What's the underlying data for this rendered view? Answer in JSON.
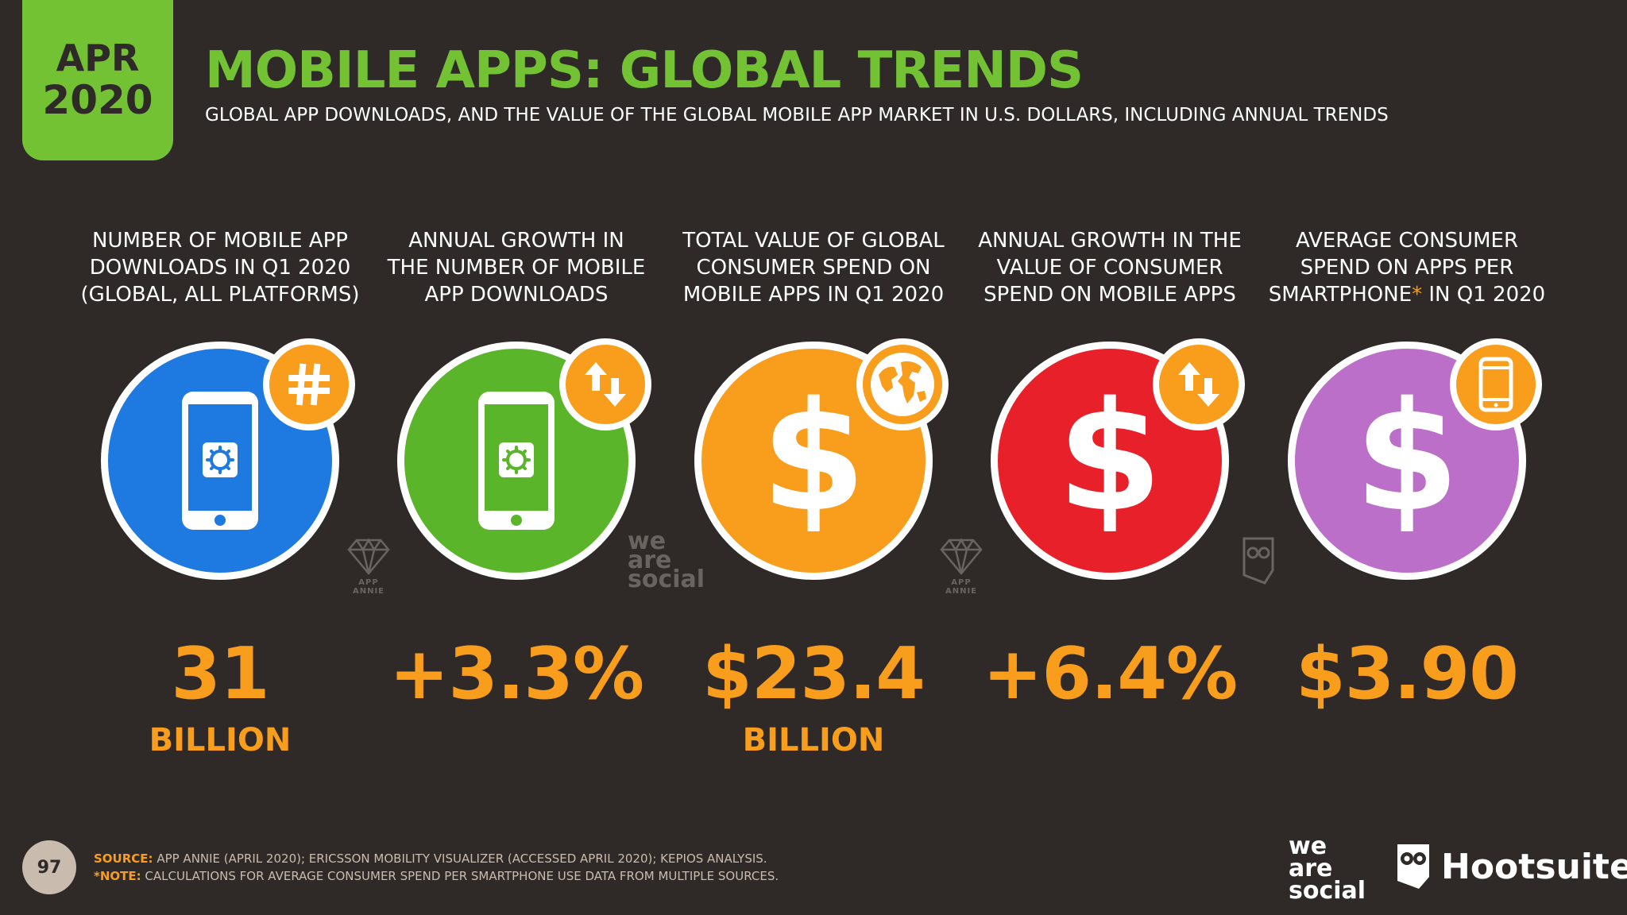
{
  "header": {
    "month": "APR",
    "year": "2020",
    "title": "MOBILE APPS: GLOBAL TRENDS",
    "subtitle": "GLOBAL APP DOWNLOADS, AND THE VALUE OF THE GLOBAL MOBILE APP MARKET IN U.S. DOLLARS, INCLUDING ANNUAL TRENDS"
  },
  "colors": {
    "background": "#2f2a27",
    "accent_green": "#72c234",
    "accent_orange": "#f99d1c",
    "blue": "#1e7ae0",
    "green": "#5ab52a",
    "orange": "#f99d1c",
    "red": "#e8202a",
    "purple": "#bc6fc8"
  },
  "stats": [
    {
      "label_lines": [
        "NUMBER OF MOBILE APP",
        "DOWNLOADS IN Q1 2020",
        "(GLOBAL, ALL PLATFORMS)"
      ],
      "value": "31",
      "unit": "BILLION",
      "icon": "phone-app-icon",
      "badge_icon": "hash-icon"
    },
    {
      "label_lines": [
        "ANNUAL GROWTH IN",
        "THE NUMBER OF MOBILE",
        "APP DOWNLOADS"
      ],
      "value": "+3.3%",
      "unit": "",
      "icon": "phone-app-icon",
      "badge_icon": "up-down-arrows-icon"
    },
    {
      "label_lines": [
        "TOTAL VALUE OF GLOBAL",
        "CONSUMER SPEND ON",
        "MOBILE APPS IN Q1 2020"
      ],
      "value": "$23.4",
      "unit": "BILLION",
      "icon": "dollar-icon",
      "badge_icon": "globe-icon"
    },
    {
      "label_lines": [
        "ANNUAL GROWTH IN THE",
        "VALUE OF CONSUMER",
        "SPEND ON MOBILE APPS"
      ],
      "value": "+6.4%",
      "unit": "",
      "icon": "dollar-icon",
      "badge_icon": "up-down-arrows-icon"
    },
    {
      "label_lines": [
        "AVERAGE CONSUMER",
        "SPEND ON APPS PER",
        "SMARTPHONE",
        "IN Q1 2020"
      ],
      "label_star": "*",
      "value": "$3.90",
      "unit": "",
      "icon": "dollar-icon",
      "badge_icon": "smartphone-icon"
    }
  ],
  "watermarks": {
    "app_annie": "APP ANNIE",
    "we": "we",
    "are": "are",
    "social": "social"
  },
  "footer": {
    "page_number": "97",
    "source_key": "SOURCE:",
    "source_text": " APP ANNIE (APRIL 2020); ERICSSON MOBILITY VISUALIZER (ACCESSED APRIL 2020); KEPIOS ANALYSIS.",
    "note_key": "*NOTE:",
    "note_text": " CALCULATIONS FOR AVERAGE CONSUMER SPEND PER SMARTPHONE USE DATA FROM MULTIPLE SOURCES.",
    "brand_we": "we",
    "brand_are": "are",
    "brand_social": "social",
    "hootsuite": "Hootsuite",
    "trademark": "®"
  }
}
